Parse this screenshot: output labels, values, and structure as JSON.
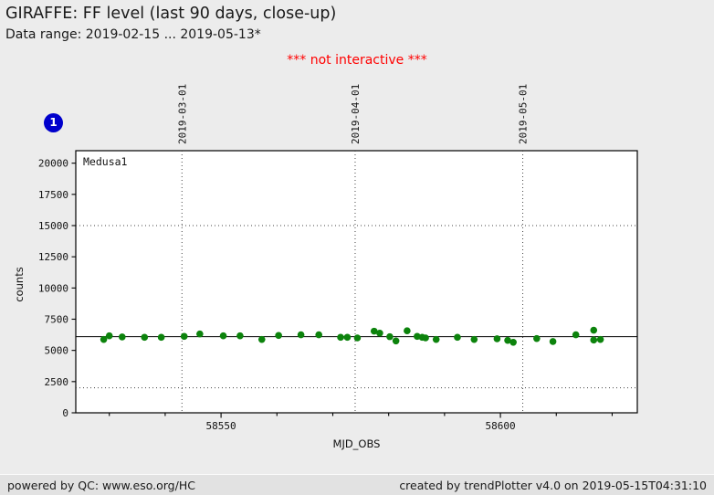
{
  "page": {
    "title": "GIRAFFE: FF level (last 90 days, close-up)",
    "subtitle": "Data range: 2019-02-15 ... 2019-05-13*",
    "warning": "*** not interactive ***",
    "badge_label": "1",
    "colors": {
      "background": "#ececec",
      "plot_background": "#ffffff",
      "badge": "#0000cc",
      "warning_text": "#ff0000",
      "data_point": "#0c830c",
      "frame": "#000000"
    }
  },
  "footer": {
    "left": "powered by QC: www.eso.org/HC",
    "right": "created by trendPlotter v4.0 on 2019-05-15T04:31:10"
  },
  "chart_data": {
    "type": "scatter",
    "xlabel": "MJD_OBS",
    "ylabel": "counts",
    "annotation": "Medusa1",
    "xlim": [
      58524,
      58624.5
    ],
    "ylim": [
      0,
      21000
    ],
    "x_major_ticks": [
      58550,
      58600
    ],
    "x_major_tick_labels": [
      "58550",
      "58600"
    ],
    "x_minor_tick_step": 10,
    "y_ticks": [
      0,
      2500,
      5000,
      7500,
      10000,
      12500,
      15000,
      17500,
      20000
    ],
    "y_tick_labels": [
      "0",
      "2500",
      "5000",
      "7500",
      "10000",
      "12500",
      "15000",
      "17500",
      "20000"
    ],
    "month_lines": [
      {
        "mjd": 58543,
        "label": "2019-03-01"
      },
      {
        "mjd": 58574,
        "label": "2019-04-01"
      },
      {
        "mjd": 58604,
        "label": "2019-05-01"
      }
    ],
    "reference_line": 6100,
    "threshold_lines": [
      2000,
      15000
    ],
    "grid": "month-vlines-and-threshold-hlines-dotted",
    "legend_position": "none",
    "series": [
      {
        "name": "Medusa1",
        "color": "#0c830c",
        "points": [
          [
            58529.0,
            5880
          ],
          [
            58530.0,
            6170
          ],
          [
            58532.3,
            6080
          ],
          [
            58536.3,
            6050
          ],
          [
            58539.3,
            6050
          ],
          [
            58543.4,
            6120
          ],
          [
            58546.2,
            6320
          ],
          [
            58550.4,
            6170
          ],
          [
            58553.4,
            6170
          ],
          [
            58557.3,
            5880
          ],
          [
            58560.3,
            6200
          ],
          [
            58564.3,
            6250
          ],
          [
            58567.5,
            6250
          ],
          [
            58571.4,
            6050
          ],
          [
            58572.6,
            6050
          ],
          [
            58574.4,
            6000
          ],
          [
            58577.4,
            6540
          ],
          [
            58578.4,
            6380
          ],
          [
            58580.2,
            6100
          ],
          [
            58581.3,
            5760
          ],
          [
            58583.3,
            6570
          ],
          [
            58585.1,
            6120
          ],
          [
            58586.0,
            6050
          ],
          [
            58586.6,
            6000
          ],
          [
            58588.5,
            5880
          ],
          [
            58592.3,
            6050
          ],
          [
            58595.3,
            5880
          ],
          [
            58599.4,
            5930
          ],
          [
            58601.3,
            5800
          ],
          [
            58602.3,
            5650
          ],
          [
            58606.5,
            5950
          ],
          [
            58609.4,
            5710
          ],
          [
            58613.5,
            6250
          ],
          [
            58616.7,
            6620
          ],
          [
            58616.7,
            5830
          ],
          [
            58617.9,
            5880
          ]
        ]
      }
    ]
  }
}
